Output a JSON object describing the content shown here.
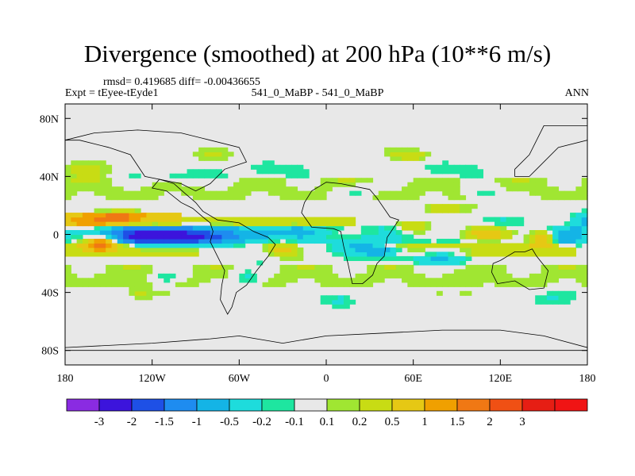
{
  "header": {
    "title": "Divergence (smoothed) at 200 hPa (10**6 m/s)",
    "stats_line": "rmsd= 0.419685 diff= -0.00436655",
    "expt_label": "Expt = tEyee-tEyde1",
    "case_label": "541_0_MaBP - 541_0_MaBP",
    "season_label": "ANN"
  },
  "chart_data": {
    "type": "heatmap",
    "title": "Divergence (smoothed) at 200 hPa (10**6 m/s)",
    "xlabel": "",
    "ylabel": "",
    "xlim": [
      -180,
      180
    ],
    "ylim": [
      -90,
      90
    ],
    "x_ticks": [
      {
        "value": -180,
        "label": "180"
      },
      {
        "value": -120,
        "label": "120W"
      },
      {
        "value": -60,
        "label": "60W"
      },
      {
        "value": 0,
        "label": "0"
      },
      {
        "value": 60,
        "label": "60E"
      },
      {
        "value": 120,
        "label": "120E"
      },
      {
        "value": 180,
        "label": "180"
      }
    ],
    "y_ticks": [
      {
        "value": 80,
        "label": "80N"
      },
      {
        "value": 40,
        "label": "40N"
      },
      {
        "value": 0,
        "label": "0"
      },
      {
        "value": -40,
        "label": "40S"
      },
      {
        "value": -80,
        "label": "80S"
      }
    ],
    "background_color": "#e8e8e8",
    "colorbar": {
      "colors": [
        "#8a2be2",
        "#3c14dc",
        "#1e50e6",
        "#1e8cf0",
        "#14b4e6",
        "#1edcdc",
        "#1ee6a0",
        "#e8e8e8",
        "#a0e632",
        "#c8dc14",
        "#e6c814",
        "#f0a000",
        "#f07814",
        "#f05014",
        "#e61e14",
        "#f01414"
      ],
      "labels": [
        "-3",
        "-2",
        "-1.5",
        "-1",
        "-0.5",
        "-0.2",
        "-0.1",
        "0.1",
        "0.2",
        "0.5",
        "1",
        "1.5",
        "2",
        "3"
      ]
    },
    "features": [
      {
        "type": "band",
        "lon": [
          -180,
          180
        ],
        "lat": [
          -5,
          5
        ],
        "value": -0.15
      },
      {
        "type": "band",
        "lon": [
          -180,
          -100
        ],
        "lat": [
          6,
          14
        ],
        "value": 0.6
      },
      {
        "type": "band",
        "lon": [
          -100,
          20
        ],
        "lat": [
          5,
          12
        ],
        "value": 0.3
      },
      {
        "type": "band",
        "lon": [
          -180,
          -90
        ],
        "lat": [
          -14,
          -6
        ],
        "value": 0.3
      },
      {
        "type": "band",
        "lon": [
          40,
          170
        ],
        "lat": [
          -15,
          -5
        ],
        "value": 0.3
      },
      {
        "type": "band",
        "lon": [
          -180,
          180
        ],
        "lat": [
          25,
          40
        ],
        "value": 0.12
      },
      {
        "type": "band",
        "lon": [
          -180,
          180
        ],
        "lat": [
          -35,
          -22
        ],
        "value": 0.12
      },
      {
        "type": "blob",
        "lon": -120,
        "lat": 0,
        "rx": 35,
        "ry": 6,
        "value": -1.9
      },
      {
        "type": "blob",
        "lon": -100,
        "lat": -2,
        "rx": 30,
        "ry": 5,
        "value": -1.2
      },
      {
        "type": "blob",
        "lon": -60,
        "lat": 0,
        "rx": 30,
        "ry": 5,
        "value": -0.6
      },
      {
        "type": "blob",
        "lon": -20,
        "lat": 2,
        "rx": 18,
        "ry": 4,
        "value": -0.4
      },
      {
        "type": "blob",
        "lon": 20,
        "lat": -8,
        "rx": 15,
        "ry": 5,
        "value": -0.6
      },
      {
        "type": "blob",
        "lon": 40,
        "lat": -12,
        "rx": 12,
        "ry": 4,
        "value": -0.9
      },
      {
        "type": "blob",
        "lon": 80,
        "lat": -15,
        "rx": 20,
        "ry": 6,
        "value": -0.5
      },
      {
        "type": "blob",
        "lon": 120,
        "lat": 8,
        "rx": 18,
        "ry": 4,
        "value": -0.3
      },
      {
        "type": "blob",
        "lon": 165,
        "lat": -2,
        "rx": 10,
        "ry": 6,
        "value": -0.8
      },
      {
        "type": "blob",
        "lon": 178,
        "lat": 10,
        "rx": 8,
        "ry": 6,
        "value": -0.6
      },
      {
        "type": "blob",
        "lon": -155,
        "lat": -6,
        "rx": 12,
        "ry": 5,
        "value": 1.8
      },
      {
        "type": "blob",
        "lon": -160,
        "lat": 10,
        "rx": 20,
        "ry": 5,
        "value": 0.8
      },
      {
        "type": "blob",
        "lon": -140,
        "lat": 12,
        "rx": 15,
        "ry": 3,
        "value": 1.1
      },
      {
        "type": "blob",
        "lon": 110,
        "lat": 1,
        "rx": 15,
        "ry": 5,
        "value": 1.2
      },
      {
        "type": "blob",
        "lon": 150,
        "lat": -3,
        "rx": 10,
        "ry": 5,
        "value": 1.0
      },
      {
        "type": "blob",
        "lon": 60,
        "lat": 5,
        "rx": 10,
        "ry": 4,
        "value": 0.6
      },
      {
        "type": "blob",
        "lon": 80,
        "lat": 18,
        "rx": 12,
        "ry": 4,
        "value": 0.5
      },
      {
        "type": "blob",
        "lon": -30,
        "lat": -10,
        "rx": 10,
        "ry": 5,
        "value": 0.6
      },
      {
        "type": "blob",
        "lon": -165,
        "lat": 45,
        "rx": 15,
        "ry": 6,
        "value": 0.3
      },
      {
        "type": "blob",
        "lon": -100,
        "lat": 40,
        "rx": 18,
        "ry": 5,
        "value": -0.25
      },
      {
        "type": "blob",
        "lon": -40,
        "lat": 45,
        "rx": 18,
        "ry": 5,
        "value": -0.25
      },
      {
        "type": "blob",
        "lon": 20,
        "lat": 30,
        "rx": 12,
        "ry": 4,
        "value": -0.25
      },
      {
        "type": "blob",
        "lon": 80,
        "lat": 45,
        "rx": 18,
        "ry": 5,
        "value": -0.25
      },
      {
        "type": "blob",
        "lon": 110,
        "lat": 28,
        "rx": 12,
        "ry": 4,
        "value": -0.3
      },
      {
        "type": "blob",
        "lon": 60,
        "lat": 55,
        "rx": 15,
        "ry": 4,
        "value": 0.35
      },
      {
        "type": "blob",
        "lon": -80,
        "lat": 55,
        "rx": 20,
        "ry": 4,
        "value": 0.15
      },
      {
        "type": "blob",
        "lon": -130,
        "lat": -40,
        "rx": 12,
        "ry": 5,
        "value": 0.3
      },
      {
        "type": "blob",
        "lon": -110,
        "lat": -30,
        "rx": 10,
        "ry": 5,
        "value": -0.3
      },
      {
        "type": "blob",
        "lon": -55,
        "lat": -30,
        "rx": 10,
        "ry": 6,
        "value": -0.35
      },
      {
        "type": "blob",
        "lon": 10,
        "lat": -45,
        "rx": 12,
        "ry": 5,
        "value": -0.3
      },
      {
        "type": "blob",
        "lon": 100,
        "lat": -40,
        "rx": 12,
        "ry": 5,
        "value": 0.2
      },
      {
        "type": "blob",
        "lon": 150,
        "lat": -45,
        "rx": 15,
        "ry": 5,
        "value": -0.2
      }
    ]
  }
}
